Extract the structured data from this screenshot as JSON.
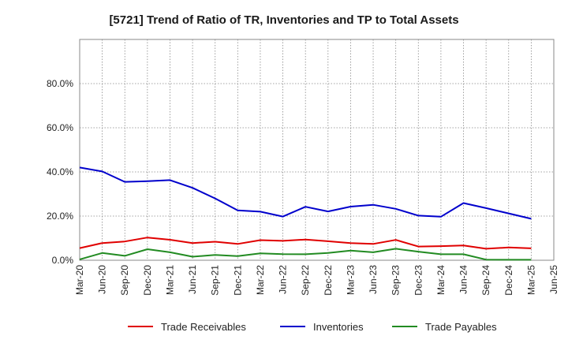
{
  "chart_data": {
    "type": "line",
    "title": "[5721]  Trend of Ratio of TR, Inventories and TP to Total Assets",
    "xlabel": "",
    "ylabel": "",
    "x": [
      "Mar-20",
      "Jun-20",
      "Sep-20",
      "Dec-20",
      "Mar-21",
      "Jun-21",
      "Sep-21",
      "Dec-21",
      "Mar-22",
      "Jun-22",
      "Sep-22",
      "Dec-22",
      "Mar-23",
      "Jun-23",
      "Sep-23",
      "Dec-23",
      "Mar-24",
      "Jun-24",
      "Sep-24",
      "Dec-24",
      "Mar-25",
      "Jun-25"
    ],
    "ylim": [
      0,
      100
    ],
    "yticks": [
      "0.0%",
      "20.0%",
      "40.0%",
      "60.0%",
      "80.0%"
    ],
    "ytick_values": [
      0,
      20,
      40,
      60,
      80
    ],
    "grid": true,
    "legend_position": "bottom",
    "series": [
      {
        "name": "Trade Receivables",
        "color": "#e00000",
        "values": [
          5.5,
          7.8,
          8.5,
          10.3,
          9.3,
          7.8,
          8.4,
          7.4,
          9.1,
          8.8,
          9.4,
          8.6,
          7.8,
          7.4,
          9.2,
          6.2,
          6.4,
          6.7,
          5.2,
          5.8,
          5.4,
          null
        ]
      },
      {
        "name": "Inventories",
        "color": "#0000cc",
        "values": [
          42.0,
          40.2,
          35.5,
          35.8,
          36.3,
          32.8,
          28.0,
          22.6,
          22.0,
          19.8,
          24.2,
          22.1,
          24.3,
          25.1,
          23.3,
          20.2,
          19.7,
          25.9,
          23.6,
          21.2,
          18.8,
          null
        ]
      },
      {
        "name": "Trade Payables",
        "color": "#228b22",
        "values": [
          0.4,
          3.3,
          2.0,
          5.0,
          3.6,
          1.6,
          2.4,
          1.9,
          3.1,
          2.8,
          2.7,
          3.3,
          4.4,
          3.6,
          5.2,
          3.9,
          2.7,
          2.7,
          0.3,
          0.2,
          0.2,
          null
        ]
      }
    ]
  }
}
